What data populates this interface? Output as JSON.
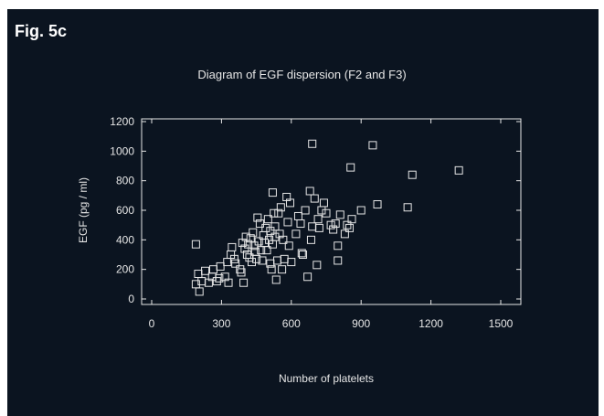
{
  "figure": {
    "label": "Fig. 5c",
    "background": "#0b1420",
    "foreground": "#e6e6e6"
  },
  "chart_data": {
    "type": "scatter",
    "title": "Diagram of EGF dispersion (F2 and F3)",
    "xlabel": "Number of platelets",
    "ylabel": "EGF (pg / ml)",
    "xlim": [
      0,
      1500
    ],
    "ylim": [
      0,
      1200
    ],
    "x_ticks": [
      "0",
      "300",
      "600",
      "900",
      "1200",
      "1500"
    ],
    "y_ticks": [
      "0",
      "200",
      "400",
      "600",
      "800",
      "1000",
      "1200"
    ],
    "grid": false,
    "marker": "open-square",
    "points": [
      [
        190,
        370
      ],
      [
        190,
        100
      ],
      [
        200,
        170
      ],
      [
        205,
        50
      ],
      [
        215,
        120
      ],
      [
        230,
        190
      ],
      [
        245,
        110
      ],
      [
        260,
        150
      ],
      [
        265,
        200
      ],
      [
        280,
        120
      ],
      [
        290,
        140
      ],
      [
        295,
        220
      ],
      [
        315,
        150
      ],
      [
        325,
        250
      ],
      [
        330,
        110
      ],
      [
        340,
        300
      ],
      [
        345,
        350
      ],
      [
        355,
        270
      ],
      [
        360,
        240
      ],
      [
        380,
        200
      ],
      [
        385,
        180
      ],
      [
        390,
        380
      ],
      [
        395,
        110
      ],
      [
        400,
        340
      ],
      [
        405,
        420
      ],
      [
        410,
        300
      ],
      [
        415,
        370
      ],
      [
        420,
        280
      ],
      [
        425,
        410
      ],
      [
        430,
        250
      ],
      [
        435,
        450
      ],
      [
        440,
        360
      ],
      [
        445,
        320
      ],
      [
        450,
        270
      ],
      [
        455,
        550
      ],
      [
        460,
        390
      ],
      [
        465,
        510
      ],
      [
        470,
        330
      ],
      [
        475,
        260
      ],
      [
        480,
        430
      ],
      [
        485,
        380
      ],
      [
        490,
        480
      ],
      [
        495,
        330
      ],
      [
        500,
        540
      ],
      [
        505,
        400
      ],
      [
        510,
        460
      ],
      [
        510,
        240
      ],
      [
        515,
        200
      ],
      [
        520,
        370
      ],
      [
        520,
        720
      ],
      [
        525,
        580
      ],
      [
        530,
        490
      ],
      [
        530,
        420
      ],
      [
        535,
        130
      ],
      [
        540,
        260
      ],
      [
        545,
        580
      ],
      [
        550,
        440
      ],
      [
        555,
        620
      ],
      [
        560,
        200
      ],
      [
        565,
        400
      ],
      [
        570,
        270
      ],
      [
        580,
        690
      ],
      [
        585,
        520
      ],
      [
        590,
        360
      ],
      [
        595,
        650
      ],
      [
        600,
        250
      ],
      [
        620,
        440
      ],
      [
        630,
        560
      ],
      [
        640,
        510
      ],
      [
        645,
        310
      ],
      [
        650,
        300
      ],
      [
        660,
        600
      ],
      [
        670,
        150
      ],
      [
        680,
        730
      ],
      [
        685,
        400
      ],
      [
        690,
        490
      ],
      [
        690,
        1050
      ],
      [
        700,
        680
      ],
      [
        710,
        230
      ],
      [
        715,
        540
      ],
      [
        720,
        480
      ],
      [
        730,
        600
      ],
      [
        740,
        650
      ],
      [
        750,
        580
      ],
      [
        770,
        500
      ],
      [
        780,
        470
      ],
      [
        790,
        510
      ],
      [
        800,
        360
      ],
      [
        800,
        260
      ],
      [
        810,
        570
      ],
      [
        830,
        440
      ],
      [
        840,
        500
      ],
      [
        850,
        480
      ],
      [
        855,
        890
      ],
      [
        860,
        540
      ],
      [
        900,
        600
      ],
      [
        950,
        1040
      ],
      [
        970,
        640
      ],
      [
        1100,
        620
      ],
      [
        1120,
        840
      ],
      [
        1320,
        870
      ]
    ]
  }
}
